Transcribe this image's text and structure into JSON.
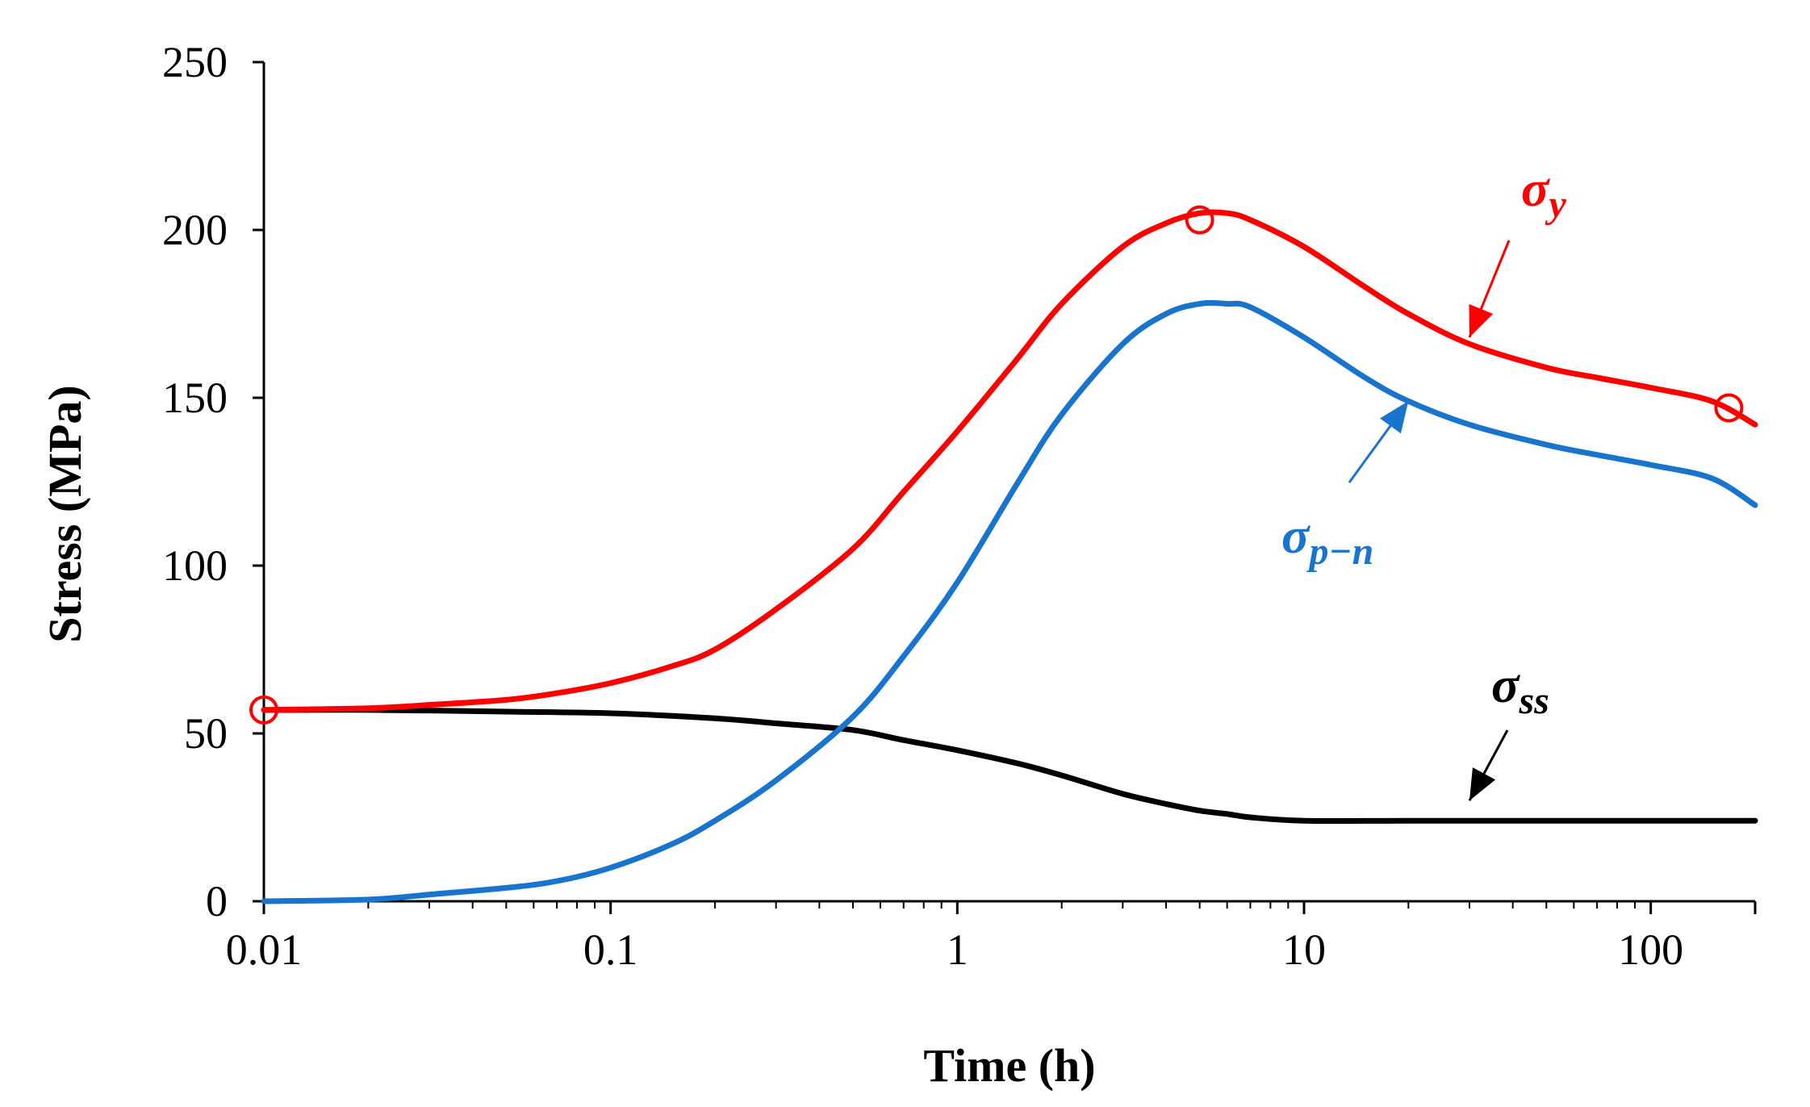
{
  "chart_data": {
    "type": "line",
    "title": "",
    "xlabel": "Time (h)",
    "ylabel": "Stress (MPa)",
    "xscale": "log",
    "xlim": [
      0.01,
      200
    ],
    "ylim": [
      0,
      250
    ],
    "x_tick_labels": [
      "0.01",
      "0.1",
      "1",
      "10",
      "100"
    ],
    "y_tick_labels": [
      "0",
      "50",
      "100",
      "150",
      "200",
      "250"
    ],
    "grid": false,
    "legend": "none (inline labels)",
    "series": [
      {
        "name": "sigma_y",
        "label_main": "σ",
        "label_sub": "y",
        "color": "#ff0000",
        "x": [
          0.01,
          0.02,
          0.03,
          0.05,
          0.07,
          0.1,
          0.15,
          0.2,
          0.3,
          0.5,
          0.7,
          1,
          1.5,
          2,
          3,
          4,
          5,
          6,
          7,
          10,
          15,
          20,
          30,
          50,
          70,
          100,
          150,
          200
        ],
        "y": [
          57,
          57.5,
          58.5,
          60,
          62,
          65,
          70,
          75,
          87,
          105,
          122,
          140,
          162,
          178,
          195,
          202,
          205,
          205,
          203,
          195,
          183,
          175,
          166,
          159,
          156,
          153,
          149,
          142
        ]
      },
      {
        "name": "sigma_p-n",
        "label_main": "σ",
        "label_sub": "p−n",
        "color": "#1874cd",
        "x": [
          0.01,
          0.02,
          0.03,
          0.05,
          0.07,
          0.1,
          0.15,
          0.2,
          0.3,
          0.5,
          0.7,
          1,
          1.5,
          2,
          3,
          4,
          5,
          6,
          7,
          10,
          15,
          20,
          30,
          50,
          70,
          100,
          150,
          200
        ],
        "y": [
          0,
          0.5,
          2,
          4,
          6,
          10,
          17,
          24,
          36,
          55,
          73,
          95,
          125,
          145,
          166,
          175,
          178,
          178,
          177,
          168,
          156,
          149,
          142,
          136,
          133,
          130,
          126,
          118
        ]
      },
      {
        "name": "sigma_ss",
        "label_main": "σ",
        "label_sub": "ss",
        "color": "#000000",
        "x": [
          0.01,
          0.02,
          0.05,
          0.1,
          0.2,
          0.3,
          0.5,
          0.7,
          1,
          1.5,
          2,
          3,
          4,
          5,
          6,
          7,
          10,
          20,
          50,
          100,
          200
        ],
        "y": [
          57,
          57,
          56.5,
          56,
          54.5,
          53,
          51,
          48,
          45,
          41,
          37.5,
          32,
          29,
          27,
          26,
          25,
          24,
          24,
          24,
          24,
          24
        ]
      }
    ],
    "markers": [
      {
        "series": "sigma_y",
        "x": 0.01,
        "y": 57,
        "shape": "open-circle"
      },
      {
        "series": "sigma_y",
        "x": 5,
        "y": 203,
        "shape": "open-circle"
      },
      {
        "series": "sigma_y",
        "x": 168,
        "y": 147,
        "shape": "open-circle"
      }
    ],
    "annotations": [
      {
        "series": "sigma_y",
        "text": "σy",
        "arrow_points_to": {
          "x": 30,
          "y": 168
        }
      },
      {
        "series": "sigma_p-n",
        "text": "σp−n",
        "arrow_points_to": {
          "x": 20,
          "y": 149
        }
      },
      {
        "series": "sigma_ss",
        "text": "σss",
        "arrow_points_to": {
          "x": 30,
          "y": 30
        }
      }
    ]
  }
}
